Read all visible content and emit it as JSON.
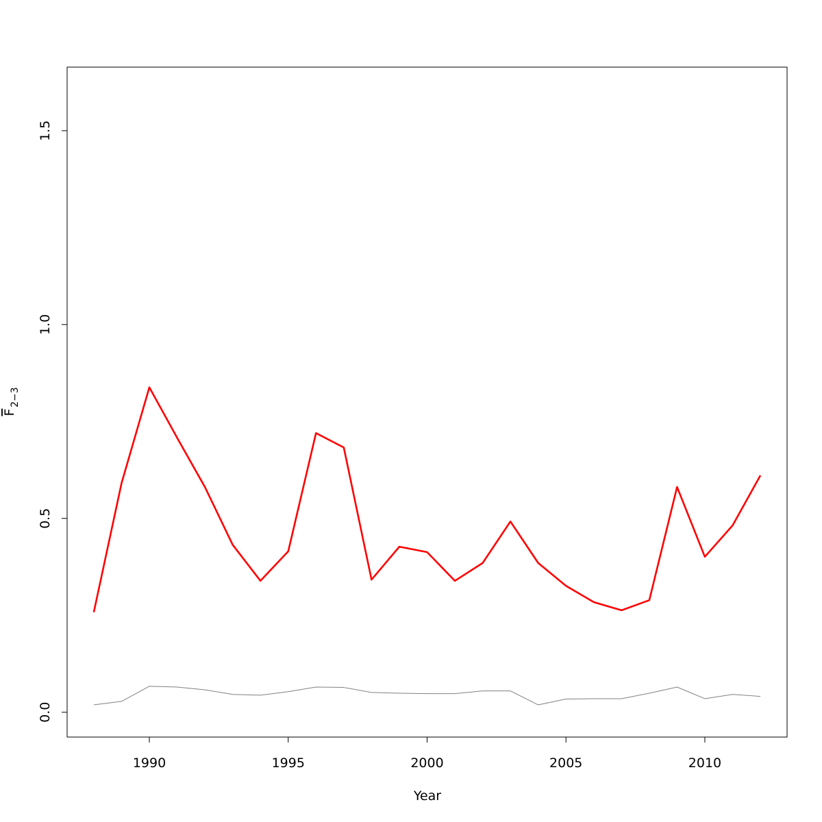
{
  "chart_data": {
    "type": "line",
    "xlabel": "Year",
    "ylabel": "F",
    "ylabel_subscript": "2−3",
    "x": [
      1988,
      1989,
      1990,
      1991,
      1992,
      1993,
      1994,
      1995,
      1996,
      1997,
      1998,
      1999,
      2000,
      2001,
      2002,
      2003,
      2004,
      2005,
      2006,
      2007,
      2008,
      2009,
      2010,
      2011,
      2012
    ],
    "series": [
      {
        "color": "#ff0000",
        "values": [
          0.258,
          0.591,
          0.838,
          0.708,
          0.581,
          0.432,
          0.339,
          0.415,
          0.72,
          0.683,
          0.342,
          0.427,
          0.413,
          0.339,
          0.385,
          0.492,
          0.385,
          0.326,
          0.284,
          0.263,
          0.289,
          0.581,
          0.401,
          0.482,
          0.611
        ]
      },
      {
        "color": "#808080",
        "values": [
          0.019,
          0.028,
          0.067,
          0.065,
          0.058,
          0.046,
          0.044,
          0.053,
          0.065,
          0.064,
          0.051,
          0.049,
          0.048,
          0.048,
          0.055,
          0.055,
          0.019,
          0.034,
          0.035,
          0.035,
          0.049,
          0.065,
          0.035,
          0.046,
          0.041
        ]
      }
    ],
    "xlim": [
      1987.04,
      2012.96
    ],
    "xticks": [
      1990,
      1995,
      2000,
      2005,
      2010
    ],
    "ylim": [
      -0.064,
      1.664
    ],
    "yticks": [
      {
        "value": 0,
        "label": "0.0"
      },
      {
        "value": 0.5,
        "label": "0.5"
      },
      {
        "value": 1,
        "label": "1.0"
      },
      {
        "value": 1.5,
        "label": "1.5"
      }
    ]
  }
}
